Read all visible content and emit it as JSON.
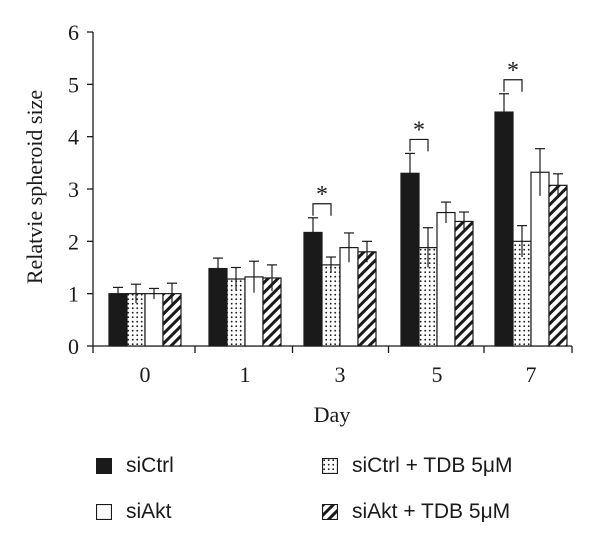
{
  "chart_data": {
    "type": "bar",
    "xlabel": "Day",
    "ylabel": "Relatvie spheroid size",
    "ylim": [
      0,
      6
    ],
    "yticks": [
      "0",
      "1",
      "2",
      "3",
      "4",
      "5",
      "6"
    ],
    "categories": [
      "0",
      "1",
      "3",
      "5",
      "7"
    ],
    "series": [
      {
        "name": "siCtrl",
        "pattern": "solid",
        "values": [
          1.0,
          1.48,
          2.17,
          3.3,
          4.47
        ],
        "errors": [
          0.12,
          0.2,
          0.28,
          0.38,
          0.35
        ]
      },
      {
        "name": "siCtrl + TDB 5μM",
        "pattern": "dots",
        "values": [
          1.0,
          1.28,
          1.55,
          1.88,
          2.0
        ],
        "errors": [
          0.18,
          0.22,
          0.15,
          0.38,
          0.3
        ]
      },
      {
        "name": "siAkt",
        "pattern": "open",
        "values": [
          1.0,
          1.32,
          1.88,
          2.55,
          3.32
        ],
        "errors": [
          0.1,
          0.3,
          0.28,
          0.2,
          0.45
        ]
      },
      {
        "name": "siAkt + TDB 5μM",
        "pattern": "hatch",
        "values": [
          1.0,
          1.3,
          1.8,
          2.38,
          3.07
        ],
        "errors": [
          0.2,
          0.25,
          0.2,
          0.18,
          0.22
        ]
      }
    ],
    "annotations": [
      {
        "category": "3",
        "text": "*"
      },
      {
        "category": "5",
        "text": "*"
      },
      {
        "category": "7",
        "text": "*"
      }
    ],
    "legend_position": "bottom"
  },
  "legend": {
    "items": [
      "siCtrl",
      "siAkt",
      "siCtrl + TDB 5μM",
      "siAkt + TDB 5μM"
    ]
  }
}
